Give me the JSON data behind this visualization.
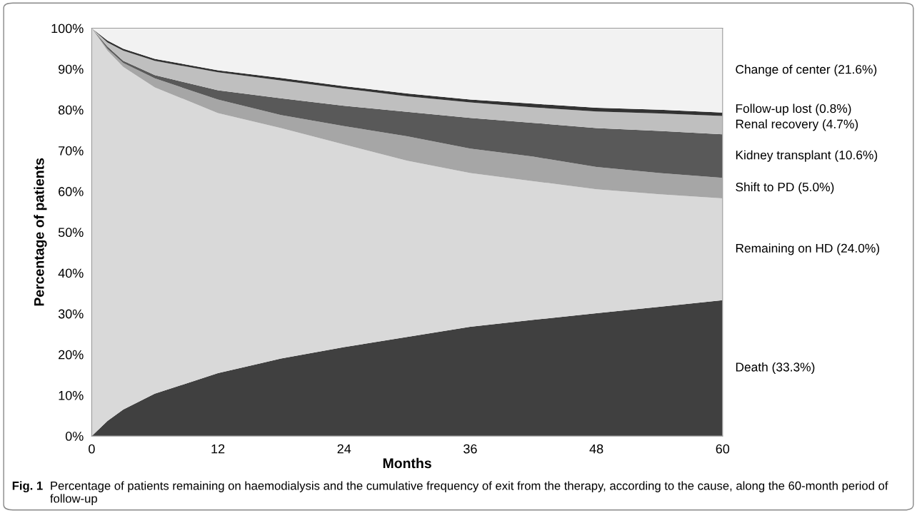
{
  "chart_data": {
    "type": "area",
    "stacked": true,
    "xlabel": "Months",
    "ylabel": "Percentage of patients",
    "x": [
      0,
      1.5,
      3,
      6,
      12,
      18,
      24,
      30,
      36,
      42,
      48,
      54,
      60
    ],
    "xlim": [
      0,
      60
    ],
    "xticks": [
      0,
      12,
      24,
      36,
      48,
      60
    ],
    "ylim": [
      0,
      100
    ],
    "yticks": [
      {
        "value": 0,
        "label": "0%"
      },
      {
        "value": 10,
        "label": "10%"
      },
      {
        "value": 20,
        "label": "20%"
      },
      {
        "value": 30,
        "label": "30%"
      },
      {
        "value": 40,
        "label": "40%"
      },
      {
        "value": 50,
        "label": "50%"
      },
      {
        "value": 60,
        "label": "60%"
      },
      {
        "value": 70,
        "label": "70%"
      },
      {
        "value": 80,
        "label": "80%"
      },
      {
        "value": 90,
        "label": "90%"
      },
      {
        "value": 100,
        "label": "100%"
      }
    ],
    "grid": false,
    "legend": false,
    "series": [
      {
        "name": "Death (33.3%)",
        "color": "#404040",
        "values": [
          0,
          3.7,
          6.5,
          10.4,
          15.4,
          19,
          21.8,
          24.3,
          26.8,
          28.5,
          30.1,
          31.7,
          33.3
        ]
      },
      {
        "name": "Remaining on HD (24.0%)",
        "color": "#d9d9d9",
        "values": [
          100,
          90.8,
          84.0,
          75.1,
          63.8,
          56.5,
          49.7,
          43.2,
          37.7,
          34.0,
          30.4,
          27.6,
          25.0
        ]
      },
      {
        "name": "Shift to PD (5.0%)",
        "color": "#a6a6a6",
        "values": [
          0,
          0.5,
          1.0,
          2.2,
          3.3,
          3.2,
          4.5,
          6.0,
          6.0,
          6.0,
          5.5,
          5.2,
          5.0
        ]
      },
      {
        "name": "Kidney transplant (10.6%)",
        "color": "#595959",
        "values": [
          0,
          0.5,
          0.5,
          0.8,
          2.3,
          4.1,
          5.0,
          6.0,
          7.5,
          8.3,
          9.5,
          10.3,
          10.7
        ]
      },
      {
        "name": "Renal recovery (4.7%)",
        "color": "#bfbfbf",
        "values": [
          0,
          1.0,
          2.5,
          3.5,
          4.4,
          4.4,
          4.2,
          3.8,
          3.8,
          3.8,
          4.1,
          4.3,
          4.5
        ]
      },
      {
        "name": "Follow-up lost (0.8%)",
        "color": "#333333",
        "values": [
          0,
          0.5,
          0.5,
          0.5,
          0.5,
          0.6,
          0.6,
          0.7,
          0.7,
          0.9,
          0.9,
          0.9,
          0.8
        ]
      },
      {
        "name": "Change of center (21.6%)",
        "color": "#f2f2f2",
        "values": [
          0,
          3,
          5,
          7.5,
          10.3,
          12.2,
          14.2,
          16,
          17.5,
          18.5,
          19.5,
          20,
          20.7
        ]
      }
    ],
    "annotations": [
      "Fig. 1",
      "Percentage of patients remaining on haemodialysis and the cumulative frequency of exit from the therapy, according to the cause, along the 60-month period of follow-up"
    ]
  }
}
